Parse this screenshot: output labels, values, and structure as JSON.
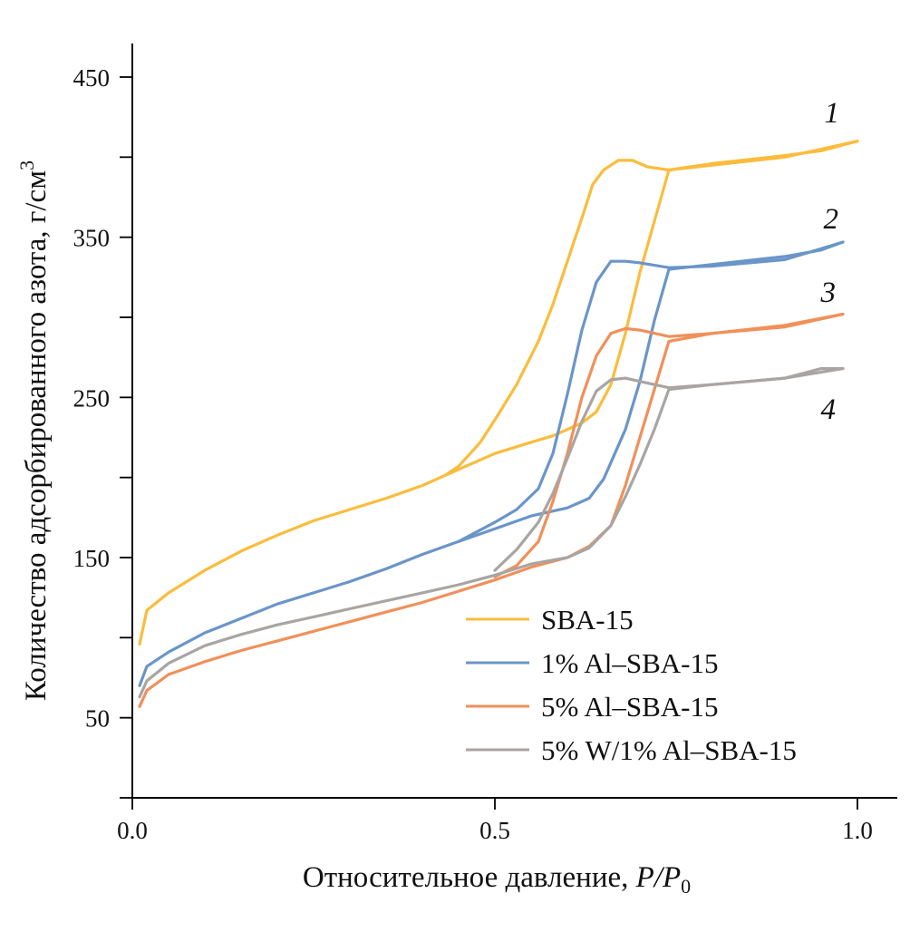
{
  "chart_data": {
    "type": "line",
    "title": "",
    "xlabel": "Относительное давление, ",
    "xlabel_italic": "P/P",
    "xlabel_sub": "0",
    "ylabel": "Количество  адсорбированного азота, г/см",
    "ylabel_sup": "3",
    "xlim": [
      0.0,
      1.0
    ],
    "ylim": [
      0,
      450
    ],
    "x_ticks": [
      {
        "value": 0.0,
        "label": "0.0"
      },
      {
        "value": 0.5,
        "label": "0.5"
      },
      {
        "value": 1.0,
        "label": "1.0"
      }
    ],
    "y_ticks": [
      {
        "value": 0,
        "label": ""
      },
      {
        "value": 50,
        "label": "50"
      },
      {
        "value": 100,
        "label": ""
      },
      {
        "value": 150,
        "label": "150"
      },
      {
        "value": 200,
        "label": ""
      },
      {
        "value": 250,
        "label": "250"
      },
      {
        "value": 300,
        "label": ""
      },
      {
        "value": 350,
        "label": "350"
      },
      {
        "value": 400,
        "label": ""
      },
      {
        "value": 450,
        "label": "450"
      }
    ],
    "grid": false,
    "legend_position": "bottom-right",
    "series": [
      {
        "name": "SBA-15",
        "curve_label": "1",
        "color": "#FBBC3C",
        "adsorption": [
          [
            0.01,
            96
          ],
          [
            0.02,
            117
          ],
          [
            0.05,
            128
          ],
          [
            0.1,
            142
          ],
          [
            0.15,
            154
          ],
          [
            0.2,
            164
          ],
          [
            0.25,
            173
          ],
          [
            0.3,
            180
          ],
          [
            0.35,
            187
          ],
          [
            0.4,
            195
          ],
          [
            0.45,
            205
          ],
          [
            0.5,
            215
          ],
          [
            0.55,
            222
          ],
          [
            0.58,
            226
          ],
          [
            0.62,
            234
          ],
          [
            0.64,
            241
          ],
          [
            0.66,
            258
          ],
          [
            0.68,
            290
          ],
          [
            0.7,
            328
          ],
          [
            0.72,
            360
          ],
          [
            0.74,
            392
          ],
          [
            0.8,
            396
          ],
          [
            0.9,
            401
          ],
          [
            0.95,
            404
          ],
          [
            1.0,
            410
          ]
        ],
        "desorption": [
          [
            1.0,
            410
          ],
          [
            0.9,
            400
          ],
          [
            0.8,
            395
          ],
          [
            0.74,
            392
          ],
          [
            0.71,
            394
          ],
          [
            0.69,
            398
          ],
          [
            0.67,
            398
          ],
          [
            0.65,
            392
          ],
          [
            0.635,
            383
          ],
          [
            0.62,
            362
          ],
          [
            0.6,
            335
          ],
          [
            0.58,
            308
          ],
          [
            0.56,
            285
          ],
          [
            0.53,
            258
          ],
          [
            0.5,
            236
          ],
          [
            0.48,
            222
          ],
          [
            0.45,
            207
          ],
          [
            0.43,
            201
          ]
        ]
      },
      {
        "name": "1% Al–SBA-15",
        "curve_label": "2",
        "color": "#6A95C9",
        "adsorption": [
          [
            0.01,
            70
          ],
          [
            0.02,
            82
          ],
          [
            0.05,
            91
          ],
          [
            0.1,
            103
          ],
          [
            0.15,
            112
          ],
          [
            0.2,
            121
          ],
          [
            0.25,
            128
          ],
          [
            0.3,
            135
          ],
          [
            0.35,
            143
          ],
          [
            0.4,
            152
          ],
          [
            0.45,
            160
          ],
          [
            0.5,
            168
          ],
          [
            0.55,
            176
          ],
          [
            0.6,
            181
          ],
          [
            0.63,
            187
          ],
          [
            0.65,
            199
          ],
          [
            0.68,
            230
          ],
          [
            0.7,
            260
          ],
          [
            0.72,
            298
          ],
          [
            0.74,
            330
          ],
          [
            0.8,
            333
          ],
          [
            0.9,
            338
          ],
          [
            0.95,
            342
          ],
          [
            0.98,
            347
          ]
        ],
        "desorption": [
          [
            0.98,
            347
          ],
          [
            0.9,
            336
          ],
          [
            0.8,
            332
          ],
          [
            0.74,
            331
          ],
          [
            0.7,
            334
          ],
          [
            0.68,
            335
          ],
          [
            0.66,
            335
          ],
          [
            0.64,
            322
          ],
          [
            0.62,
            292
          ],
          [
            0.6,
            252
          ],
          [
            0.58,
            215
          ],
          [
            0.56,
            193
          ],
          [
            0.53,
            180
          ],
          [
            0.5,
            172
          ],
          [
            0.45,
            160
          ]
        ]
      },
      {
        "name": "5% Al–SBA-15",
        "curve_label": "3",
        "color": "#F0905A",
        "adsorption": [
          [
            0.01,
            57
          ],
          [
            0.02,
            67
          ],
          [
            0.05,
            77
          ],
          [
            0.1,
            85
          ],
          [
            0.15,
            92
          ],
          [
            0.2,
            98
          ],
          [
            0.25,
            104
          ],
          [
            0.3,
            110
          ],
          [
            0.35,
            116
          ],
          [
            0.4,
            122
          ],
          [
            0.45,
            129
          ],
          [
            0.5,
            136
          ],
          [
            0.55,
            144
          ],
          [
            0.6,
            150
          ],
          [
            0.63,
            157
          ],
          [
            0.66,
            170
          ],
          [
            0.68,
            195
          ],
          [
            0.7,
            225
          ],
          [
            0.72,
            255
          ],
          [
            0.74,
            285
          ],
          [
            0.8,
            290
          ],
          [
            0.9,
            295
          ],
          [
            0.98,
            302
          ]
        ],
        "desorption": [
          [
            0.98,
            302
          ],
          [
            0.9,
            294
          ],
          [
            0.8,
            290
          ],
          [
            0.74,
            288
          ],
          [
            0.7,
            292
          ],
          [
            0.68,
            293
          ],
          [
            0.66,
            290
          ],
          [
            0.64,
            276
          ],
          [
            0.62,
            250
          ],
          [
            0.6,
            215
          ],
          [
            0.58,
            185
          ],
          [
            0.56,
            160
          ],
          [
            0.53,
            145
          ],
          [
            0.5,
            138
          ]
        ]
      },
      {
        "name": "5% W/1% Al–SBA-15",
        "curve_label": "4",
        "color": "#A8A5A2",
        "adsorption": [
          [
            0.01,
            63
          ],
          [
            0.02,
            73
          ],
          [
            0.05,
            84
          ],
          [
            0.1,
            95
          ],
          [
            0.15,
            102
          ],
          [
            0.2,
            108
          ],
          [
            0.25,
            113
          ],
          [
            0.3,
            118
          ],
          [
            0.35,
            123
          ],
          [
            0.4,
            128
          ],
          [
            0.45,
            133
          ],
          [
            0.5,
            139
          ],
          [
            0.55,
            146
          ],
          [
            0.6,
            150
          ],
          [
            0.63,
            156
          ],
          [
            0.66,
            170
          ],
          [
            0.68,
            188
          ],
          [
            0.7,
            208
          ],
          [
            0.72,
            230
          ],
          [
            0.74,
            255
          ],
          [
            0.8,
            258
          ],
          [
            0.9,
            262
          ],
          [
            0.95,
            268
          ],
          [
            0.98,
            268
          ]
        ],
        "desorption": [
          [
            0.98,
            268
          ],
          [
            0.9,
            262
          ],
          [
            0.8,
            258
          ],
          [
            0.74,
            256
          ],
          [
            0.7,
            260
          ],
          [
            0.68,
            262
          ],
          [
            0.66,
            261
          ],
          [
            0.64,
            254
          ],
          [
            0.62,
            235
          ],
          [
            0.6,
            212
          ],
          [
            0.58,
            190
          ],
          [
            0.56,
            172
          ],
          [
            0.53,
            155
          ],
          [
            0.5,
            142
          ]
        ]
      }
    ]
  }
}
